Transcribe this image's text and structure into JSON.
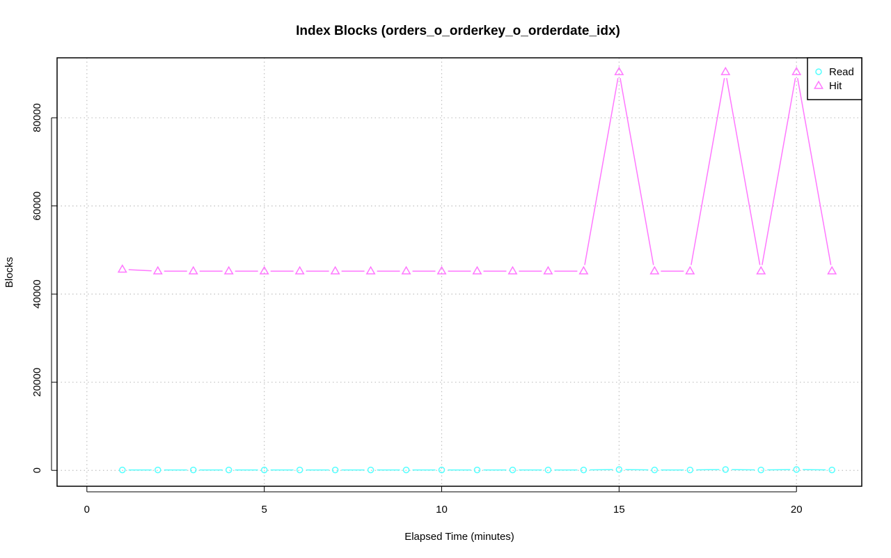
{
  "chart_data": {
    "type": "line",
    "title": "Index Blocks (orders_o_orderkey_o_orderdate_idx)",
    "xlabel": "Elapsed Time (minutes)",
    "ylabel": "Blocks",
    "xlim": [
      -0.84,
      21.84
    ],
    "ylim": [
      -3600,
      93600
    ],
    "xticks": [
      0,
      5,
      10,
      15,
      20
    ],
    "yticks": [
      0,
      20000,
      40000,
      60000,
      80000
    ],
    "xtick_labels": [
      "0",
      "5",
      "10",
      "15",
      "20"
    ],
    "ytick_labels": [
      "0",
      "20000",
      "40000",
      "60000",
      "80000"
    ],
    "grid": true,
    "legend_position": "top-right",
    "x": [
      1,
      2,
      3,
      4,
      5,
      6,
      7,
      8,
      9,
      10,
      11,
      12,
      13,
      14,
      15,
      16,
      17,
      18,
      19,
      20,
      21
    ],
    "series": [
      {
        "name": "Read",
        "color": "#55ffff",
        "marker": "circle",
        "values": [
          100,
          100,
          100,
          100,
          100,
          100,
          100,
          100,
          100,
          100,
          100,
          100,
          100,
          100,
          200,
          100,
          100,
          200,
          100,
          200,
          100
        ]
      },
      {
        "name": "Hit",
        "color": "#ff77ff",
        "marker": "triangle",
        "values": [
          45600,
          45200,
          45200,
          45200,
          45200,
          45200,
          45200,
          45200,
          45200,
          45200,
          45200,
          45200,
          45200,
          45200,
          90400,
          45200,
          45200,
          90400,
          45200,
          90400,
          45200
        ]
      }
    ]
  }
}
